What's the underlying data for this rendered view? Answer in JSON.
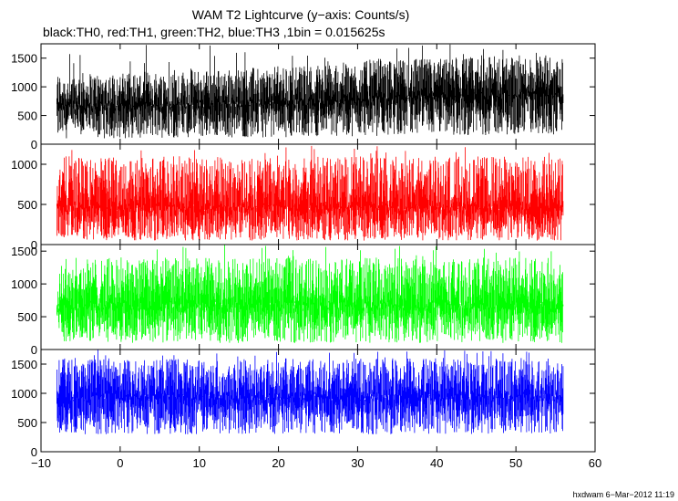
{
  "chart_data": {
    "type": "line",
    "title": "WAM T2 Lightcurve (y−axis: Counts/s)",
    "subtitle": "black:TH0, red:TH1, green:TH2, blue:TH3 ,1bin = 0.015625s",
    "xlabel": "",
    "ylabel": "",
    "xlim": [
      -10,
      60
    ],
    "x_ticks": [
      -10,
      0,
      10,
      20,
      30,
      40,
      50,
      60
    ],
    "x_tick_labels": [
      "−10",
      "0",
      "10",
      "20",
      "30",
      "40",
      "50",
      "60"
    ],
    "x_data_range": [
      -8,
      56
    ],
    "bin_seconds": 0.015625,
    "grid": false,
    "legend": "none",
    "panels": [
      {
        "series": "TH0",
        "color": "#000000",
        "ylim": [
          0,
          1750
        ],
        "y_ticks": [
          0,
          500,
          1000,
          1500
        ],
        "y_tick_labels": [
          "0",
          "500",
          "1000",
          "1500"
        ],
        "trend": {
          "x": [
            -8,
            0,
            10,
            20,
            30,
            40,
            50,
            56
          ],
          "median": [
            600,
            620,
            640,
            660,
            720,
            760,
            790,
            800
          ],
          "band_low": [
            100,
            100,
            110,
            120,
            140,
            150,
            160,
            170
          ],
          "band_high": [
            1250,
            1250,
            1300,
            1350,
            1450,
            1500,
            1550,
            1550
          ]
        },
        "peak": 1750
      },
      {
        "series": "TH1",
        "color": "#ff0000",
        "ylim": [
          0,
          1250
        ],
        "y_ticks": [
          0,
          500,
          1000
        ],
        "y_tick_labels": [
          "0",
          "500",
          "1000"
        ],
        "trend": {
          "x": [
            -8,
            56
          ],
          "median": [
            420,
            420
          ],
          "band_low": [
            50,
            50
          ],
          "band_high": [
            1100,
            1100
          ]
        },
        "peak": 1250
      },
      {
        "series": "TH2",
        "color": "#00ff00",
        "ylim": [
          0,
          1600
        ],
        "y_ticks": [
          0,
          500,
          1000,
          1500
        ],
        "y_tick_labels": [
          "0",
          "500",
          "1000",
          "1500"
        ],
        "trend": {
          "x": [
            -8,
            56
          ],
          "median": [
            620,
            620
          ],
          "band_low": [
            100,
            100
          ],
          "band_high": [
            1400,
            1400
          ]
        },
        "peak": 1600
      },
      {
        "series": "TH3",
        "color": "#0000ff",
        "ylim": [
          0,
          1750
        ],
        "y_ticks": [
          0,
          500,
          1000,
          1500
        ],
        "y_tick_labels": [
          "0",
          "500",
          "1000",
          "1500"
        ],
        "trend": {
          "x": [
            -8,
            56
          ],
          "median": [
            880,
            880
          ],
          "band_low": [
            300,
            300
          ],
          "band_high": [
            1600,
            1600
          ]
        },
        "peak": 1750
      }
    ]
  },
  "footer": "hxdwam  6−Mar−2012 11:19"
}
